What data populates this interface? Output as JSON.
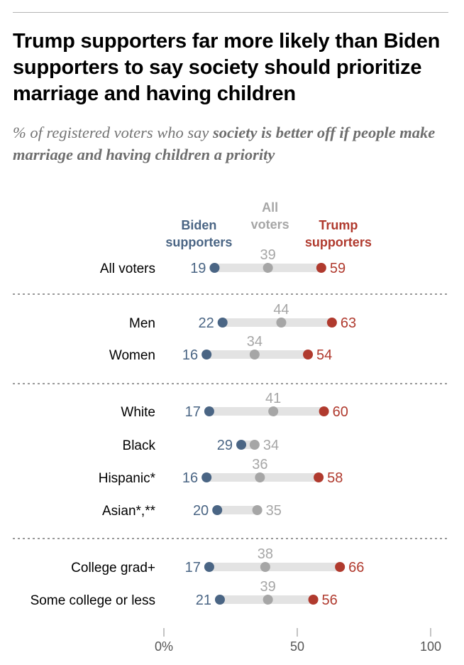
{
  "title": "Trump supporters far more likely than Biden supporters to say society should prioritize marriage and having children",
  "subtitle": {
    "plain": "% of registered voters who say ",
    "bold": "society is better off if people make marriage and having children a priority"
  },
  "colors": {
    "biden": "#4a6584",
    "all": "#a6a6a6",
    "trump": "#b03a2e",
    "track": "#e3e3e3"
  },
  "chart_data": {
    "type": "dot-plot",
    "headers": {
      "biden": [
        "Biden",
        "supporters"
      ],
      "all": [
        "All",
        "voters"
      ],
      "trump": [
        "Trump",
        "supporters"
      ]
    },
    "xlim": [
      0,
      100
    ],
    "ticks": [
      {
        "value": 0,
        "label": "0%"
      },
      {
        "value": 50,
        "label": "50"
      },
      {
        "value": 100,
        "label": "100"
      }
    ],
    "rows": [
      {
        "label": "All voters",
        "biden": 19,
        "all": 39,
        "trump": 59,
        "group": 0
      },
      {
        "label": "Men",
        "biden": 22,
        "all": 44,
        "trump": 63,
        "group": 1
      },
      {
        "label": "Women",
        "biden": 16,
        "all": 34,
        "trump": 54,
        "group": 1
      },
      {
        "label": "White",
        "biden": 17,
        "all": 41,
        "trump": 60,
        "group": 2
      },
      {
        "label": "Black",
        "biden": 29,
        "all": 34,
        "trump": null,
        "group": 2
      },
      {
        "label": "Hispanic*",
        "biden": 16,
        "all": 36,
        "trump": 58,
        "group": 2
      },
      {
        "label": "Asian*,**",
        "biden": 20,
        "all": 35,
        "trump": null,
        "group": 2
      },
      {
        "label": "College grad+",
        "biden": 17,
        "all": 38,
        "trump": 66,
        "group": 3
      },
      {
        "label": "Some college or less",
        "biden": 21,
        "all": 39,
        "trump": 56,
        "group": 3
      }
    ]
  }
}
